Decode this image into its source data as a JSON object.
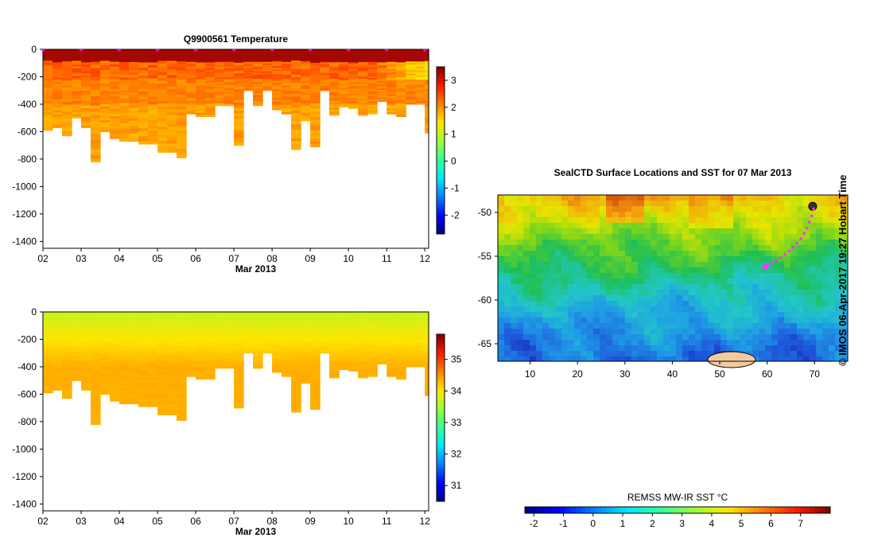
{
  "credit": "© IMOS 06-Apr-2017 19:27 Hobart Time",
  "colors": {
    "jet": [
      "#00007f",
      "#0000ff",
      "#007fff",
      "#00e5ff",
      "#33ff99",
      "#99ff33",
      "#ffe500",
      "#ff7f00",
      "#ff1a00",
      "#7f0000"
    ],
    "sst": [
      "#1a0a8c",
      "#1d4fd8",
      "#1f9be6",
      "#22c7c8",
      "#1fbf55",
      "#7fd61c",
      "#e5e500",
      "#f5a00e",
      "#d8560c",
      "#8c1a0a"
    ],
    "land": "#f2c9a0",
    "track": "#ff33ff"
  },
  "chart_data": [
    {
      "type": "heatmap",
      "id": "temperature",
      "title": "Q9900561  Temperature",
      "xlabel": "Mar 2013",
      "xticks": [
        "02",
        "03",
        "04",
        "05",
        "06",
        "07",
        "08",
        "09",
        "10",
        "11",
        "12"
      ],
      "xlim": [
        2,
        12.1
      ],
      "ylim": [
        -1450,
        0
      ],
      "yticks": [
        0,
        -200,
        -400,
        -600,
        -800,
        -1000,
        -1200,
        -1400
      ],
      "colorbar": {
        "min": -2.7,
        "max": 3.5,
        "ticks": [
          3,
          2,
          1,
          0,
          -1,
          -2
        ]
      },
      "profile_days": [
        2.0,
        2.25,
        2.5,
        2.75,
        3.0,
        3.25,
        3.5,
        3.75,
        4.0,
        4.25,
        4.5,
        4.75,
        5.0,
        5.25,
        5.5,
        5.75,
        6.0,
        6.25,
        6.5,
        6.75,
        7.0,
        7.25,
        7.5,
        7.75,
        8.0,
        8.25,
        8.5,
        8.75,
        9.0,
        9.25,
        9.5,
        9.75,
        10.0,
        10.25,
        10.5,
        10.75,
        11.0,
        11.25,
        11.5,
        11.75,
        12.0
      ],
      "max_depth": [
        -590,
        -570,
        -630,
        -500,
        -570,
        -820,
        -600,
        -650,
        -670,
        -670,
        -690,
        -690,
        -750,
        -750,
        -790,
        -470,
        -490,
        -490,
        -410,
        -410,
        -700,
        -300,
        -410,
        -300,
        -440,
        -470,
        -730,
        -520,
        -710,
        -300,
        -480,
        -420,
        -430,
        -480,
        -470,
        -380,
        -470,
        -490,
        -400,
        -400,
        -610
      ],
      "value_model": {
        "surface": 3.3,
        "mixed_layer_depth": -90,
        "mid_value": 2.3,
        "mid_depth": -220,
        "deep_value": 2.0,
        "east_cooling": 0.6
      }
    },
    {
      "type": "heatmap",
      "id": "salinity",
      "title": "",
      "xlabel": "Mar 2013",
      "xticks": [
        "02",
        "03",
        "04",
        "05",
        "06",
        "07",
        "08",
        "09",
        "10",
        "11",
        "12"
      ],
      "xlim": [
        2,
        12.1
      ],
      "ylim": [
        -1450,
        0
      ],
      "yticks": [
        0,
        -200,
        -400,
        -600,
        -800,
        -1000,
        -1200,
        -1400
      ],
      "colorbar": {
        "min": 30.5,
        "max": 35.8,
        "ticks": [
          35,
          34,
          33,
          32,
          31
        ]
      },
      "value_model": {
        "surface": 33.7,
        "deep": 34.35,
        "transition_depth": -400
      }
    },
    {
      "type": "heatmap",
      "id": "sst-map",
      "title": "SealCTD Surface Locations and SST for 07 Mar 2013",
      "xticks": [
        10,
        20,
        30,
        40,
        50,
        60,
        70
      ],
      "yticks": [
        -50,
        -55,
        -60,
        -65
      ],
      "xlim": [
        3.2,
        77
      ],
      "ylim": [
        -67,
        -48
      ],
      "colorbar": {
        "label": "REMSS MW-IR SST °C",
        "min": -2.3,
        "max": 8,
        "ticks": [
          -2,
          -1,
          0,
          1,
          2,
          3,
          4,
          5,
          6,
          7
        ]
      },
      "sst_model": {
        "north": 5.2,
        "south": -0.8
      },
      "track": {
        "lon": [
          69.8,
          69.4,
          68.9,
          68.4,
          67.8,
          67.1,
          66.3,
          65.5,
          64.6,
          63.7,
          62.8,
          61.9,
          61.0,
          60.2,
          59.6
        ],
        "lat": [
          -49.6,
          -50.4,
          -51.1,
          -51.8,
          -52.4,
          -53.0,
          -53.5,
          -54.0,
          -54.4,
          -54.8,
          -55.2,
          -55.5,
          -55.8,
          -56.0,
          -56.2
        ],
        "current_position": {
          "lon": 59.6,
          "lat": -56.2
        }
      },
      "land": [
        {
          "name": "Kerguelen",
          "lon": 69.6,
          "lat": -49.3
        },
        {
          "name": "Antarctica",
          "lon": 52.5,
          "lat": -66.6
        }
      ]
    }
  ]
}
